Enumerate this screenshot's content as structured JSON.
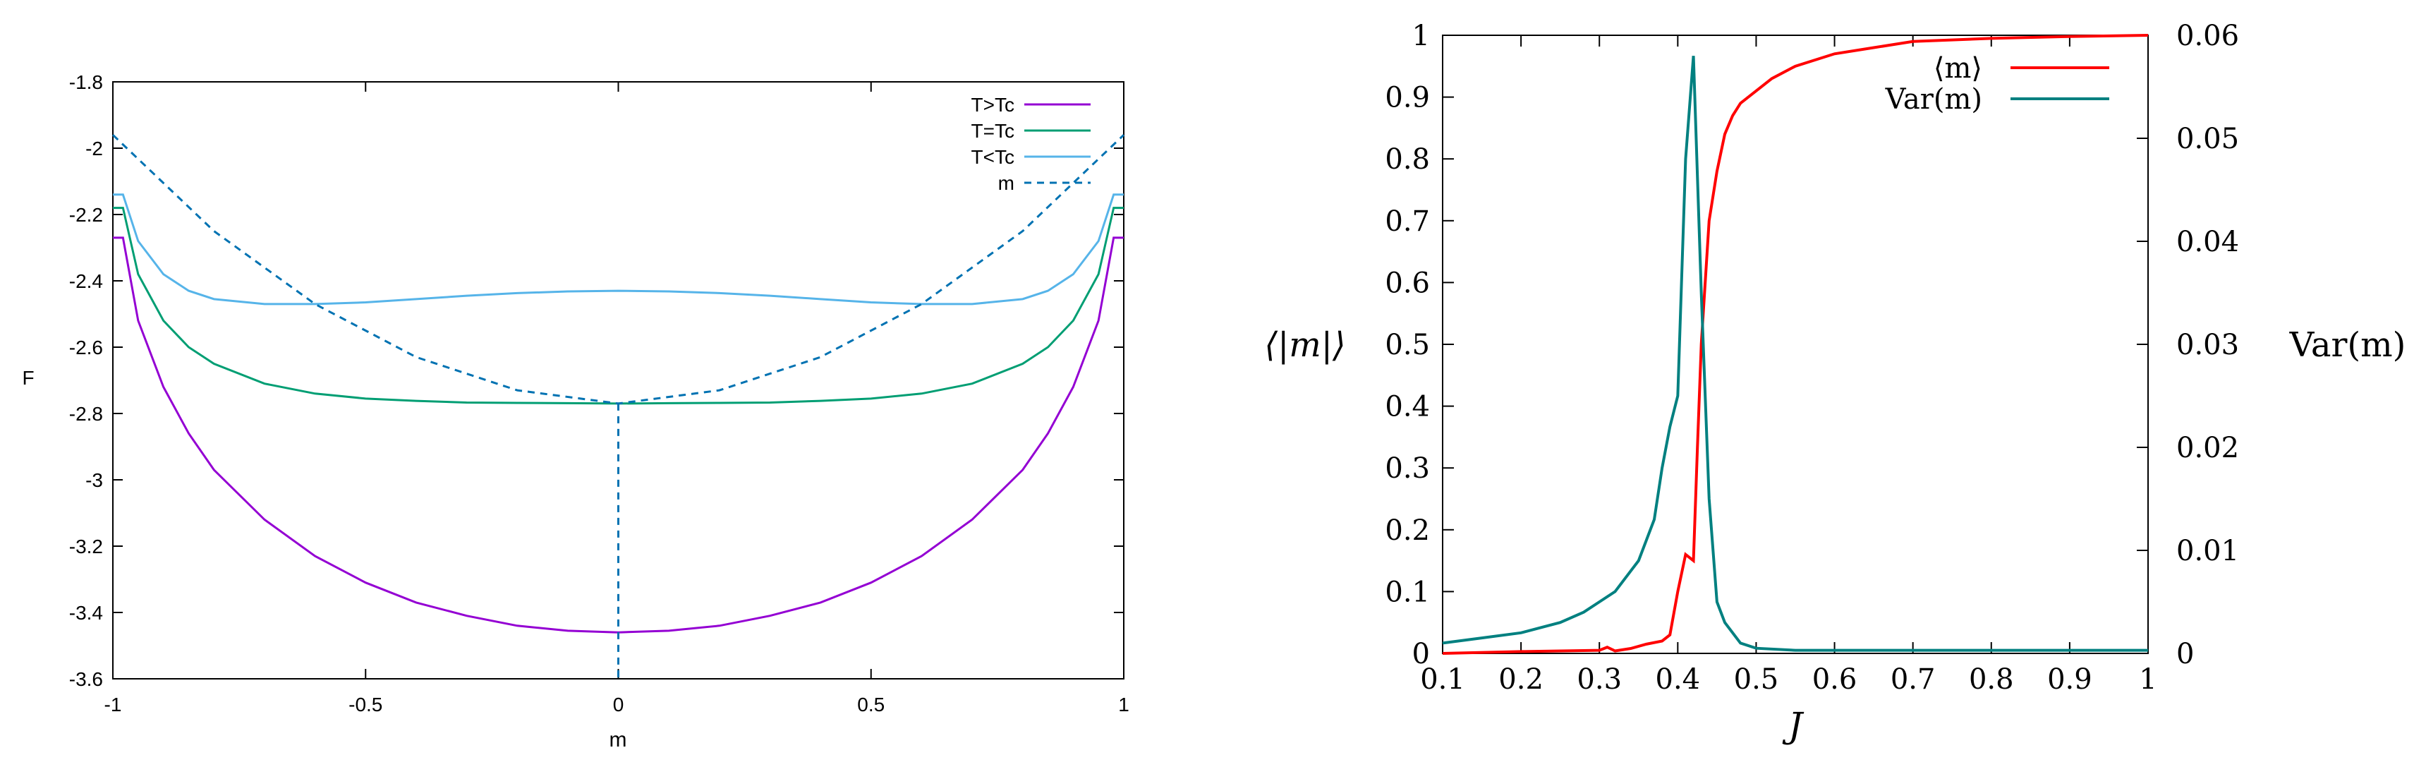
{
  "chart_data": [
    {
      "type": "line",
      "title": "",
      "xlabel": "m",
      "ylabel": "F",
      "xlim": [
        -1,
        1
      ],
      "ylim": [
        -3.6,
        -1.8
      ],
      "xticks": [
        "-1",
        "-0.5",
        "0",
        "0.5",
        "1"
      ],
      "yticks": [
        "-1.8",
        "-2",
        "-2.2",
        "-2.4",
        "-2.6",
        "-2.8",
        "-3",
        "-3.2",
        "-3.4",
        "-3.6"
      ],
      "grid": false,
      "legend_position": "top-right",
      "series": [
        {
          "name": "T>Tc",
          "color": "#9400d3",
          "style": "solid",
          "x": [
            -0.98,
            -0.95,
            -0.9,
            -0.85,
            -0.8,
            -0.7,
            -0.6,
            -0.5,
            -0.4,
            -0.3,
            -0.2,
            -0.1,
            0,
            0.1,
            0.2,
            0.3,
            0.4,
            0.5,
            0.6,
            0.7,
            0.8,
            0.85,
            0.9,
            0.95,
            0.98
          ],
          "y": [
            -2.27,
            -2.52,
            -2.72,
            -2.86,
            -2.97,
            -3.12,
            -3.23,
            -3.31,
            -3.37,
            -3.41,
            -3.44,
            -3.455,
            -3.46,
            -3.455,
            -3.44,
            -3.41,
            -3.37,
            -3.31,
            -3.23,
            -3.12,
            -2.97,
            -2.86,
            -2.72,
            -2.52,
            -2.27
          ]
        },
        {
          "name": "T=Tc",
          "color": "#009e73",
          "style": "solid",
          "x": [
            -0.98,
            -0.95,
            -0.9,
            -0.85,
            -0.8,
            -0.7,
            -0.6,
            -0.5,
            -0.4,
            -0.3,
            -0.2,
            -0.1,
            0,
            0.1,
            0.2,
            0.3,
            0.4,
            0.5,
            0.6,
            0.7,
            0.8,
            0.85,
            0.9,
            0.95,
            0.98
          ],
          "y": [
            -2.18,
            -2.38,
            -2.52,
            -2.6,
            -2.65,
            -2.71,
            -2.74,
            -2.755,
            -2.762,
            -2.767,
            -2.768,
            -2.769,
            -2.77,
            -2.769,
            -2.768,
            -2.767,
            -2.762,
            -2.755,
            -2.74,
            -2.71,
            -2.65,
            -2.6,
            -2.52,
            -2.38,
            -2.18
          ]
        },
        {
          "name": "T<Tc",
          "color": "#56b4e9",
          "style": "solid",
          "x": [
            -0.98,
            -0.95,
            -0.9,
            -0.85,
            -0.8,
            -0.7,
            -0.6,
            -0.5,
            -0.4,
            -0.3,
            -0.2,
            -0.1,
            0,
            0.1,
            0.2,
            0.3,
            0.4,
            0.5,
            0.6,
            0.7,
            0.8,
            0.85,
            0.9,
            0.95,
            0.98
          ],
          "y": [
            -2.14,
            -2.28,
            -2.38,
            -2.43,
            -2.455,
            -2.47,
            -2.47,
            -2.465,
            -2.455,
            -2.445,
            -2.437,
            -2.432,
            -2.43,
            -2.432,
            -2.437,
            -2.445,
            -2.455,
            -2.465,
            -2.47,
            -2.47,
            -2.455,
            -2.43,
            -2.38,
            -2.28,
            -2.14
          ]
        },
        {
          "name": "m",
          "color": "#0072b2",
          "style": "dashed",
          "x": [
            -1,
            -0.8,
            -0.6,
            -0.4,
            -0.2,
            0,
            0.2,
            0.4,
            0.6,
            0.8,
            1
          ],
          "y": [
            -1.96,
            -2.25,
            -2.47,
            -2.63,
            -2.73,
            -2.77,
            -2.73,
            -2.63,
            -2.47,
            -2.25,
            -1.96
          ]
        }
      ],
      "vertical_marker": {
        "x": 0,
        "y_from": -2.77,
        "y_to": -3.6,
        "color": "#0072b2",
        "style": "dashed"
      }
    },
    {
      "type": "line",
      "title": "",
      "xlabel": "J",
      "ylabel": "⟨|m|⟩",
      "y2label": "Var(m)",
      "xlim": [
        0.1,
        1
      ],
      "ylim": [
        0,
        1
      ],
      "y2lim": [
        0,
        0.06
      ],
      "xticks": [
        "0.1",
        "0.2",
        "0.3",
        "0.4",
        "0.5",
        "0.6",
        "0.7",
        "0.8",
        "0.9",
        "1"
      ],
      "yticks": [
        "0",
        "0.1",
        "0.2",
        "0.3",
        "0.4",
        "0.5",
        "0.6",
        "0.7",
        "0.8",
        "0.9",
        "1"
      ],
      "y2ticks": [
        "0",
        "0.01",
        "0.02",
        "0.03",
        "0.04",
        "0.05",
        "0.06"
      ],
      "grid": false,
      "legend_position": "top-right",
      "series": [
        {
          "name": "⟨m⟩",
          "legend_label": "⟨m⟩",
          "color": "#ff0000",
          "axis": "left",
          "x": [
            0.1,
            0.2,
            0.3,
            0.31,
            0.32,
            0.34,
            0.36,
            0.38,
            0.39,
            0.4,
            0.41,
            0.42,
            0.425,
            0.43,
            0.44,
            0.45,
            0.46,
            0.47,
            0.48,
            0.5,
            0.52,
            0.55,
            0.6,
            0.65,
            0.7,
            0.8,
            0.9,
            1.0
          ],
          "y": [
            0.0,
            0.003,
            0.005,
            0.01,
            0.004,
            0.008,
            0.015,
            0.02,
            0.03,
            0.1,
            0.16,
            0.15,
            0.33,
            0.5,
            0.7,
            0.78,
            0.84,
            0.87,
            0.89,
            0.91,
            0.93,
            0.95,
            0.97,
            0.98,
            0.99,
            0.995,
            0.998,
            1.0
          ]
        },
        {
          "name": "Var(m)",
          "legend_label": "Var(m)",
          "color": "#008080",
          "axis": "right",
          "x": [
            0.1,
            0.15,
            0.2,
            0.25,
            0.28,
            0.3,
            0.32,
            0.33,
            0.34,
            0.35,
            0.36,
            0.37,
            0.38,
            0.39,
            0.4,
            0.41,
            0.42,
            0.43,
            0.44,
            0.45,
            0.46,
            0.48,
            0.5,
            0.55,
            0.6,
            0.7,
            0.8,
            0.9,
            1.0
          ],
          "y": [
            0.001,
            0.0015,
            0.002,
            0.003,
            0.004,
            0.005,
            0.006,
            0.007,
            0.008,
            0.009,
            0.011,
            0.013,
            0.018,
            0.022,
            0.025,
            0.048,
            0.058,
            0.035,
            0.015,
            0.005,
            0.003,
            0.001,
            0.0005,
            0.0003,
            0.0003,
            0.0003,
            0.0003,
            0.0003,
            0.0003
          ]
        }
      ]
    }
  ]
}
